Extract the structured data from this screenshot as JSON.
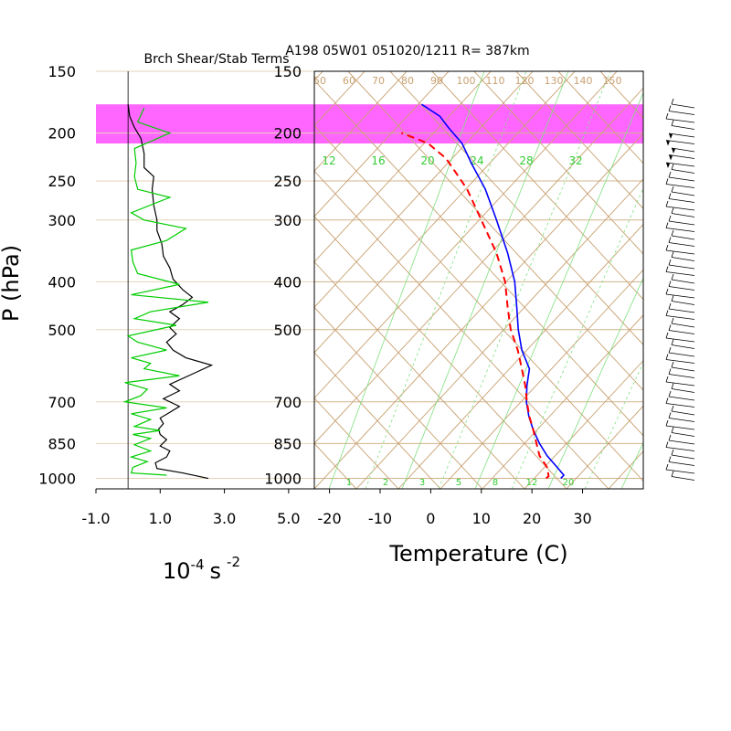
{
  "figure": {
    "main_title": "A198 05W01 051020/1211 R= 387km",
    "left_title": "Brch Shear/Stab Terms",
    "y_label": "P (hPa)",
    "left_x_unit": "10",
    "left_x_unit_exp": "-4",
    "left_x_unit_mid": "s",
    "left_x_unit_exp2": "-2",
    "right_x_label": "Temperature (C)"
  },
  "chart_data": [
    {
      "type": "line",
      "panel": "left",
      "title": "Brch Shear/Stab Terms",
      "ylabel": "P (hPa)",
      "xlabel": "10-4 s -2",
      "y_scale": "log-pressure",
      "ylim": [
        1050,
        150
      ],
      "xlim": [
        -1.0,
        5.8
      ],
      "x_ticks": [
        "-1.0",
        "1.0",
        "3.0",
        "5.0"
      ],
      "x_tick_values": [
        -1.0,
        1.0,
        3.0,
        5.0
      ],
      "y_ticks": [
        150,
        200,
        250,
        300,
        400,
        500,
        700,
        850,
        1000
      ],
      "y_tick_labels": [
        "150",
        "200",
        "250",
        "300",
        "400",
        "500",
        "700",
        "850",
        "1000"
      ],
      "highlight_band_hpa": [
        175,
        210
      ],
      "highlight_color": "#ff66ff",
      "series": [
        {
          "color": "#000000",
          "points": [
            [
              2.5,
              1000
            ],
            [
              1.7,
              975
            ],
            [
              0.9,
              955
            ],
            [
              0.85,
              930
            ],
            [
              1.2,
              905
            ],
            [
              1.3,
              880
            ],
            [
              1.0,
              860
            ],
            [
              1.2,
              835
            ],
            [
              1.0,
              815
            ],
            [
              0.95,
              795
            ],
            [
              1.1,
              775
            ],
            [
              1.0,
              755
            ],
            [
              1.3,
              735
            ],
            [
              1.6,
              715
            ],
            [
              1.1,
              690
            ],
            [
              1.6,
              665
            ],
            [
              1.3,
              645
            ],
            [
              2.0,
              615
            ],
            [
              2.6,
              590
            ],
            [
              1.8,
              570
            ],
            [
              1.4,
              550
            ],
            [
              1.2,
              530
            ],
            [
              1.5,
              510
            ],
            [
              1.3,
              495
            ],
            [
              1.6,
              475
            ],
            [
              1.3,
              460
            ],
            [
              1.7,
              445
            ],
            [
              2.0,
              430
            ],
            [
              1.7,
              415
            ],
            [
              1.4,
              395
            ],
            [
              1.3,
              375
            ],
            [
              1.1,
              355
            ],
            [
              1.05,
              335
            ],
            [
              0.9,
              315
            ],
            [
              0.9,
              300
            ],
            [
              0.8,
              280
            ],
            [
              0.75,
              260
            ],
            [
              0.8,
              245
            ],
            [
              0.5,
              235
            ],
            [
              0.5,
              220
            ],
            [
              0.4,
              205
            ],
            [
              0.2,
              195
            ],
            [
              0.05,
              185
            ],
            [
              0.0,
              175
            ]
          ]
        },
        {
          "color": "#00cc00",
          "points": [
            [
              1.2,
              985
            ],
            [
              0.1,
              975
            ],
            [
              0.15,
              950
            ],
            [
              0.6,
              925
            ],
            [
              0.1,
              905
            ],
            [
              0.7,
              880
            ],
            [
              0.2,
              855
            ],
            [
              0.7,
              830
            ],
            [
              0.15,
              815
            ],
            [
              1.0,
              800
            ],
            [
              0.2,
              785
            ],
            [
              0.7,
              760
            ],
            [
              0.1,
              740
            ],
            [
              1.2,
              720
            ],
            [
              -0.1,
              700
            ],
            [
              0.4,
              680
            ],
            [
              0.6,
              660
            ],
            [
              -0.1,
              640
            ],
            [
              1.6,
              620
            ],
            [
              0.5,
              600
            ],
            [
              0.7,
              585
            ],
            [
              0.1,
              570
            ],
            [
              1.2,
              550
            ],
            [
              0.3,
              530
            ],
            [
              0.0,
              515
            ],
            [
              1.5,
              490
            ],
            [
              0.2,
              475
            ],
            [
              0.7,
              460
            ],
            [
              2.5,
              440
            ],
            [
              0.1,
              425
            ],
            [
              1.6,
              405
            ],
            [
              0.3,
              385
            ],
            [
              0.15,
              365
            ],
            [
              0.1,
              345
            ],
            [
              1.2,
              330
            ],
            [
              1.8,
              312
            ],
            [
              0.5,
              300
            ],
            [
              0.1,
              290
            ],
            [
              1.3,
              270
            ],
            [
              0.3,
              260
            ],
            [
              0.2,
              245
            ],
            [
              0.25,
              230
            ],
            [
              0.2,
              215
            ],
            [
              1.3,
              200
            ],
            [
              0.3,
              190
            ],
            [
              0.5,
              178
            ]
          ]
        }
      ]
    },
    {
      "type": "line",
      "panel": "skew-T",
      "title": "A198 05W01 051020/1211 R= 387km",
      "xlabel": "Temperature (C)",
      "ylabel": "P (hPa)",
      "xlim": [
        -23,
        42
      ],
      "x_ticks": [
        "-20",
        "-10",
        "0",
        "10",
        "20",
        "30"
      ],
      "x_tick_values": [
        -20,
        -10,
        0,
        10,
        20,
        30
      ],
      "y_ticks": [
        150,
        200,
        250,
        300,
        400,
        500,
        700,
        850,
        1000
      ],
      "y_tick_labels": [
        "150",
        "200",
        "250",
        "300",
        "400",
        "500",
        "700",
        "850",
        "1000"
      ],
      "mixing_ratio_labels": [
        "12",
        "16",
        "20",
        "24",
        "28",
        "32"
      ],
      "mixing_ratio_labels_bottom": [
        "1",
        "2",
        "3",
        "5",
        "8",
        "12",
        "20"
      ],
      "isotherm_labels": [
        "50",
        "60",
        "70",
        "80",
        "90",
        "100",
        "110",
        "120",
        "130",
        "140",
        "150"
      ],
      "series": [
        {
          "name": "temperature",
          "color": "#0000ff",
          "style": "solid",
          "points_screen_T": [
            [
              25.7,
              1000
            ],
            [
              26.3,
              985
            ],
            [
              25.0,
              950
            ],
            [
              23.0,
              900
            ],
            [
              21.5,
              850
            ],
            [
              20.3,
              800
            ],
            [
              19.4,
              750
            ],
            [
              18.9,
              700
            ],
            [
              19.0,
              650
            ],
            [
              19.5,
              600
            ],
            [
              18.0,
              550
            ],
            [
              17.3,
              500
            ],
            [
              17.0,
              450
            ],
            [
              16.6,
              400
            ],
            [
              15.2,
              350
            ],
            [
              13.0,
              300
            ],
            [
              10.8,
              260
            ],
            [
              8.0,
              230
            ],
            [
              6.2,
              210
            ],
            [
              3.5,
              195
            ],
            [
              1.8,
              185
            ],
            [
              -1.8,
              175
            ]
          ]
        },
        {
          "name": "dewpoint",
          "color": "#ff0000",
          "style": "dashed",
          "points_screen_T": [
            [
              22.8,
              1000
            ],
            [
              23.3,
              990
            ],
            [
              23.0,
              950
            ],
            [
              21.5,
              900
            ],
            [
              20.9,
              850
            ],
            [
              20.3,
              800
            ],
            [
              19.5,
              750
            ],
            [
              19.0,
              700
            ],
            [
              18.7,
              650
            ],
            [
              18.0,
              600
            ],
            [
              17.2,
              550
            ],
            [
              15.8,
              500
            ],
            [
              15.2,
              450
            ],
            [
              14.7,
              400
            ],
            [
              13.0,
              350
            ],
            [
              10.0,
              300
            ],
            [
              7.2,
              260
            ],
            [
              4.9,
              240
            ],
            [
              3.0,
              225
            ],
            [
              -0.5,
              210
            ],
            [
              -3.0,
              205
            ],
            [
              -5.8,
              200
            ]
          ]
        }
      ]
    }
  ]
}
